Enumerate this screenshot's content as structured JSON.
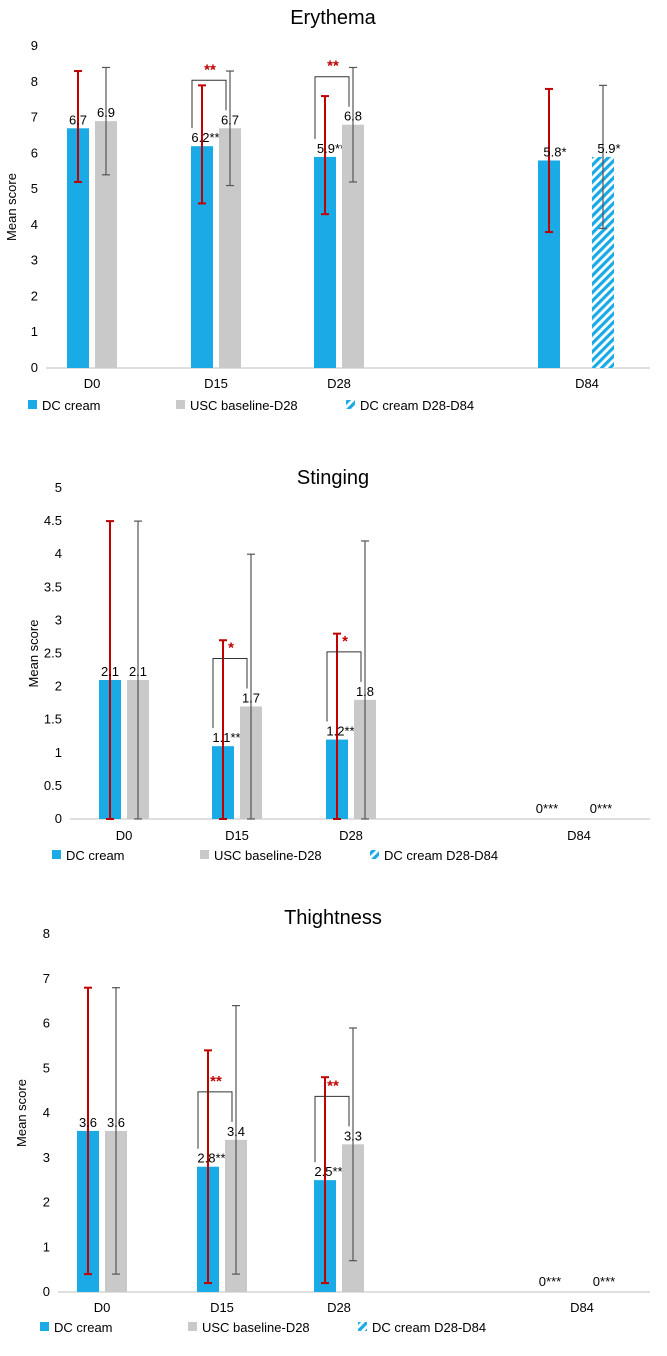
{
  "colors": {
    "dc_cream": "#1aabe6",
    "usc": "#c9c9c9",
    "dc_err": "#c00000",
    "usc_err": "#555555",
    "sig": "#c00000"
  },
  "legend": [
    "DC cream",
    "USC baseline-D28",
    "DC cream D28-D84"
  ],
  "chart_data": [
    {
      "type": "bar",
      "title": "Erythema",
      "ylabel": "Mean score",
      "ylim": [
        0,
        9
      ],
      "yticks": [
        "0",
        "1",
        "2",
        "3",
        "4",
        "5",
        "6",
        "7",
        "8",
        "9"
      ],
      "categories": [
        "D0",
        "D15",
        "D28",
        "D84"
      ],
      "series": [
        {
          "name": "DC cream",
          "values": [
            6.7,
            6.2,
            5.9,
            5.8
          ],
          "err_high": [
            8.3,
            7.9,
            7.6,
            7.8
          ],
          "err_low": [
            5.2,
            4.6,
            4.3,
            3.8
          ],
          "labels": [
            "6.7",
            "6.2***",
            "5.9**",
            "5.8*"
          ]
        },
        {
          "name": "USC baseline-D28",
          "values": [
            6.9,
            6.7,
            6.8,
            null
          ],
          "err_high": [
            8.4,
            8.3,
            8.4,
            null
          ],
          "err_low": [
            5.4,
            5.1,
            5.2,
            null
          ],
          "labels": [
            "6.9",
            "6.7",
            "6.8",
            ""
          ]
        },
        {
          "name": "DC cream D28-D84",
          "values": [
            null,
            null,
            null,
            5.9
          ],
          "err_high": [
            null,
            null,
            null,
            7.9
          ],
          "err_low": [
            null,
            null,
            null,
            3.9
          ],
          "labels": [
            "",
            "",
            "",
            "5.9*"
          ]
        }
      ],
      "significance": [
        {
          "category": "D15",
          "label": "**"
        },
        {
          "category": "D28",
          "label": "**"
        }
      ]
    },
    {
      "type": "bar",
      "title": "Stinging",
      "ylabel": "Mean score",
      "ylim": [
        0,
        5
      ],
      "yticks": [
        "0",
        "0.5",
        "1",
        "1.5",
        "2",
        "2.5",
        "3",
        "3.5",
        "4",
        "4.5",
        "5"
      ],
      "categories": [
        "D0",
        "D15",
        "D28",
        "D84"
      ],
      "series": [
        {
          "name": "DC cream",
          "values": [
            2.1,
            1.1,
            1.2,
            0
          ],
          "err_high": [
            4.5,
            2.7,
            2.8,
            null
          ],
          "err_low": [
            0,
            0,
            0,
            null
          ],
          "labels": [
            "2.1",
            "1.1***",
            "1.2***",
            "0***"
          ]
        },
        {
          "name": "USC baseline-D28",
          "values": [
            2.1,
            1.7,
            1.8,
            null
          ],
          "err_high": [
            4.5,
            4.0,
            4.2,
            null
          ],
          "err_low": [
            0,
            0,
            0,
            null
          ],
          "labels": [
            "2.1",
            "1.7",
            "1.8",
            ""
          ]
        },
        {
          "name": "DC cream D28-D84",
          "values": [
            null,
            null,
            null,
            0
          ],
          "err_high": [
            null,
            null,
            null,
            null
          ],
          "err_low": [
            null,
            null,
            null,
            null
          ],
          "labels": [
            "",
            "",
            "",
            "0***"
          ]
        }
      ],
      "significance": [
        {
          "category": "D15",
          "label": "*"
        },
        {
          "category": "D28",
          "label": "*"
        }
      ]
    },
    {
      "type": "bar",
      "title": "Thightness",
      "ylabel": "Mean score",
      "ylim": [
        0,
        8
      ],
      "yticks": [
        "0",
        "1",
        "2",
        "3",
        "4",
        "5",
        "6",
        "7",
        "8"
      ],
      "categories": [
        "D0",
        "D15",
        "D28",
        "D84"
      ],
      "series": [
        {
          "name": "DC cream",
          "values": [
            3.6,
            2.8,
            2.5,
            0
          ],
          "err_high": [
            6.8,
            5.4,
            4.8,
            null
          ],
          "err_low": [
            0.4,
            0.2,
            0.2,
            null
          ],
          "labels": [
            "3.6",
            "2.8***",
            "2.5***",
            "0***"
          ]
        },
        {
          "name": "USC baseline-D28",
          "values": [
            3.6,
            3.4,
            3.3,
            null
          ],
          "err_high": [
            6.8,
            6.4,
            5.9,
            null
          ],
          "err_low": [
            0.4,
            0.4,
            0.7,
            null
          ],
          "labels": [
            "3.6",
            "3.4",
            "3.3",
            ""
          ]
        },
        {
          "name": "DC cream D28-D84",
          "values": [
            null,
            null,
            null,
            0
          ],
          "err_high": [
            null,
            null,
            null,
            null
          ],
          "err_low": [
            null,
            null,
            null,
            null
          ],
          "labels": [
            "",
            "",
            "",
            "0***"
          ]
        }
      ],
      "significance": [
        {
          "category": "D15",
          "label": "**"
        },
        {
          "category": "D28",
          "label": "**"
        }
      ]
    }
  ]
}
